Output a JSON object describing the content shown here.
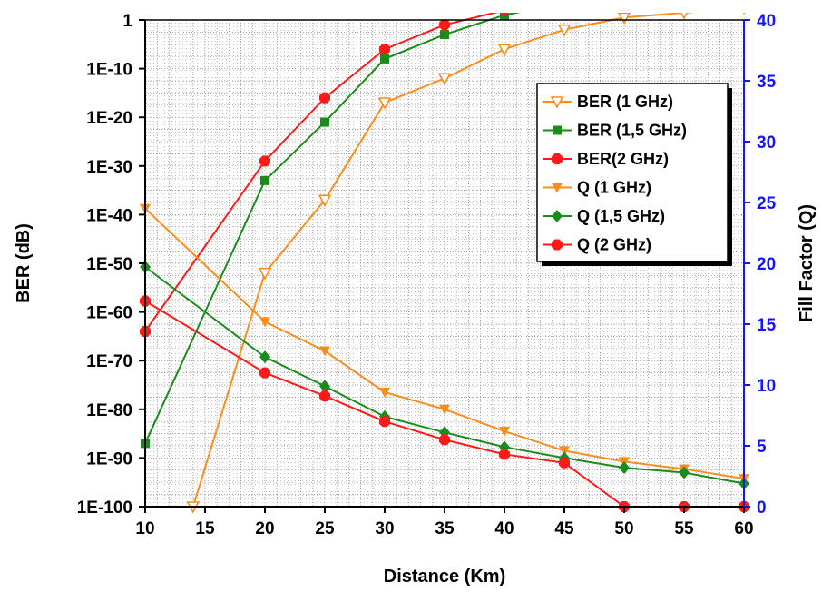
{
  "chart_data": {
    "type": "line",
    "xlabel": "Distance (Km)",
    "ylabel_left": "BER (dB)",
    "ylabel_right": "Fill Factor (Q)",
    "x": [
      10,
      15,
      20,
      25,
      30,
      35,
      40,
      45,
      50,
      55,
      60
    ],
    "x_ticks": [
      "10",
      "15",
      "20",
      "25",
      "30",
      "35",
      "40",
      "45",
      "50",
      "55",
      "60"
    ],
    "xlim": [
      10,
      60
    ],
    "left_axis": {
      "scale": "log",
      "exponent_range": [
        -100,
        0
      ],
      "tick_labels": [
        "1E-100",
        "1E-90",
        "1E-80",
        "1E-70",
        "1E-60",
        "1E-50",
        "1E-40",
        "1E-30",
        "1E-20",
        "1E-10",
        "1"
      ]
    },
    "right_axis": {
      "scale": "linear",
      "ylim": [
        0,
        40
      ],
      "tick_labels": [
        "0",
        "5",
        "10",
        "15",
        "20",
        "25",
        "30",
        "35",
        "40"
      ],
      "color": "#1414ff"
    },
    "grid": true,
    "legend_position": "upper-right",
    "series": [
      {
        "name": "BER (1 GHz)",
        "axis": "left",
        "color": "#ff8c1a",
        "marker": "triangle-down-open",
        "x": [
          14,
          20,
          25,
          30,
          35,
          40,
          45,
          50,
          55,
          60
        ],
        "log10_values": [
          -100,
          -52,
          -37,
          -17,
          -12,
          -6,
          -2,
          0.5,
          1.5,
          2.5
        ]
      },
      {
        "name": "BER (1,5 GHz)",
        "axis": "left",
        "color": "#1a8c1a",
        "marker": "square",
        "x": [
          10,
          20,
          25,
          30,
          35,
          40,
          45,
          50,
          55,
          60
        ],
        "log10_values": [
          -87,
          -33,
          -21,
          -8,
          -3,
          1,
          3.5,
          5,
          5.5,
          6
        ]
      },
      {
        "name": "BER(2 GHz)",
        "axis": "left",
        "color": "#ff1a1a",
        "marker": "circle",
        "x": [
          10,
          20,
          25,
          30,
          35,
          40,
          45,
          50,
          55,
          60
        ],
        "log10_values": [
          -64,
          -29,
          -16,
          -6,
          -1,
          2,
          4.5,
          8,
          8,
          8
        ]
      },
      {
        "name": "Q (1 GHz)",
        "axis": "right",
        "color": "#ff8c1a",
        "marker": "triangle-down",
        "x": [
          10,
          20,
          25,
          30,
          35,
          40,
          45,
          50,
          55,
          60
        ],
        "values": [
          24.5,
          15.2,
          12.8,
          9.4,
          8,
          6.2,
          4.6,
          3.7,
          3.1,
          2.3
        ]
      },
      {
        "name": "Q (1,5 GHz)",
        "axis": "right",
        "color": "#1a8c1a",
        "marker": "diamond",
        "x": [
          10,
          20,
          25,
          30,
          35,
          40,
          45,
          50,
          55,
          60
        ],
        "values": [
          19.7,
          12.3,
          9.9,
          7.4,
          6.1,
          4.9,
          4,
          3.2,
          2.8,
          1.9
        ]
      },
      {
        "name": "Q (2 GHz)",
        "axis": "right",
        "color": "#ff1a1a",
        "marker": "circle",
        "x": [
          10,
          20,
          25,
          30,
          35,
          40,
          45,
          50,
          55,
          60
        ],
        "values": [
          16.9,
          11,
          9.1,
          7,
          5.5,
          4.3,
          3.6,
          0,
          0,
          0
        ]
      }
    ]
  }
}
